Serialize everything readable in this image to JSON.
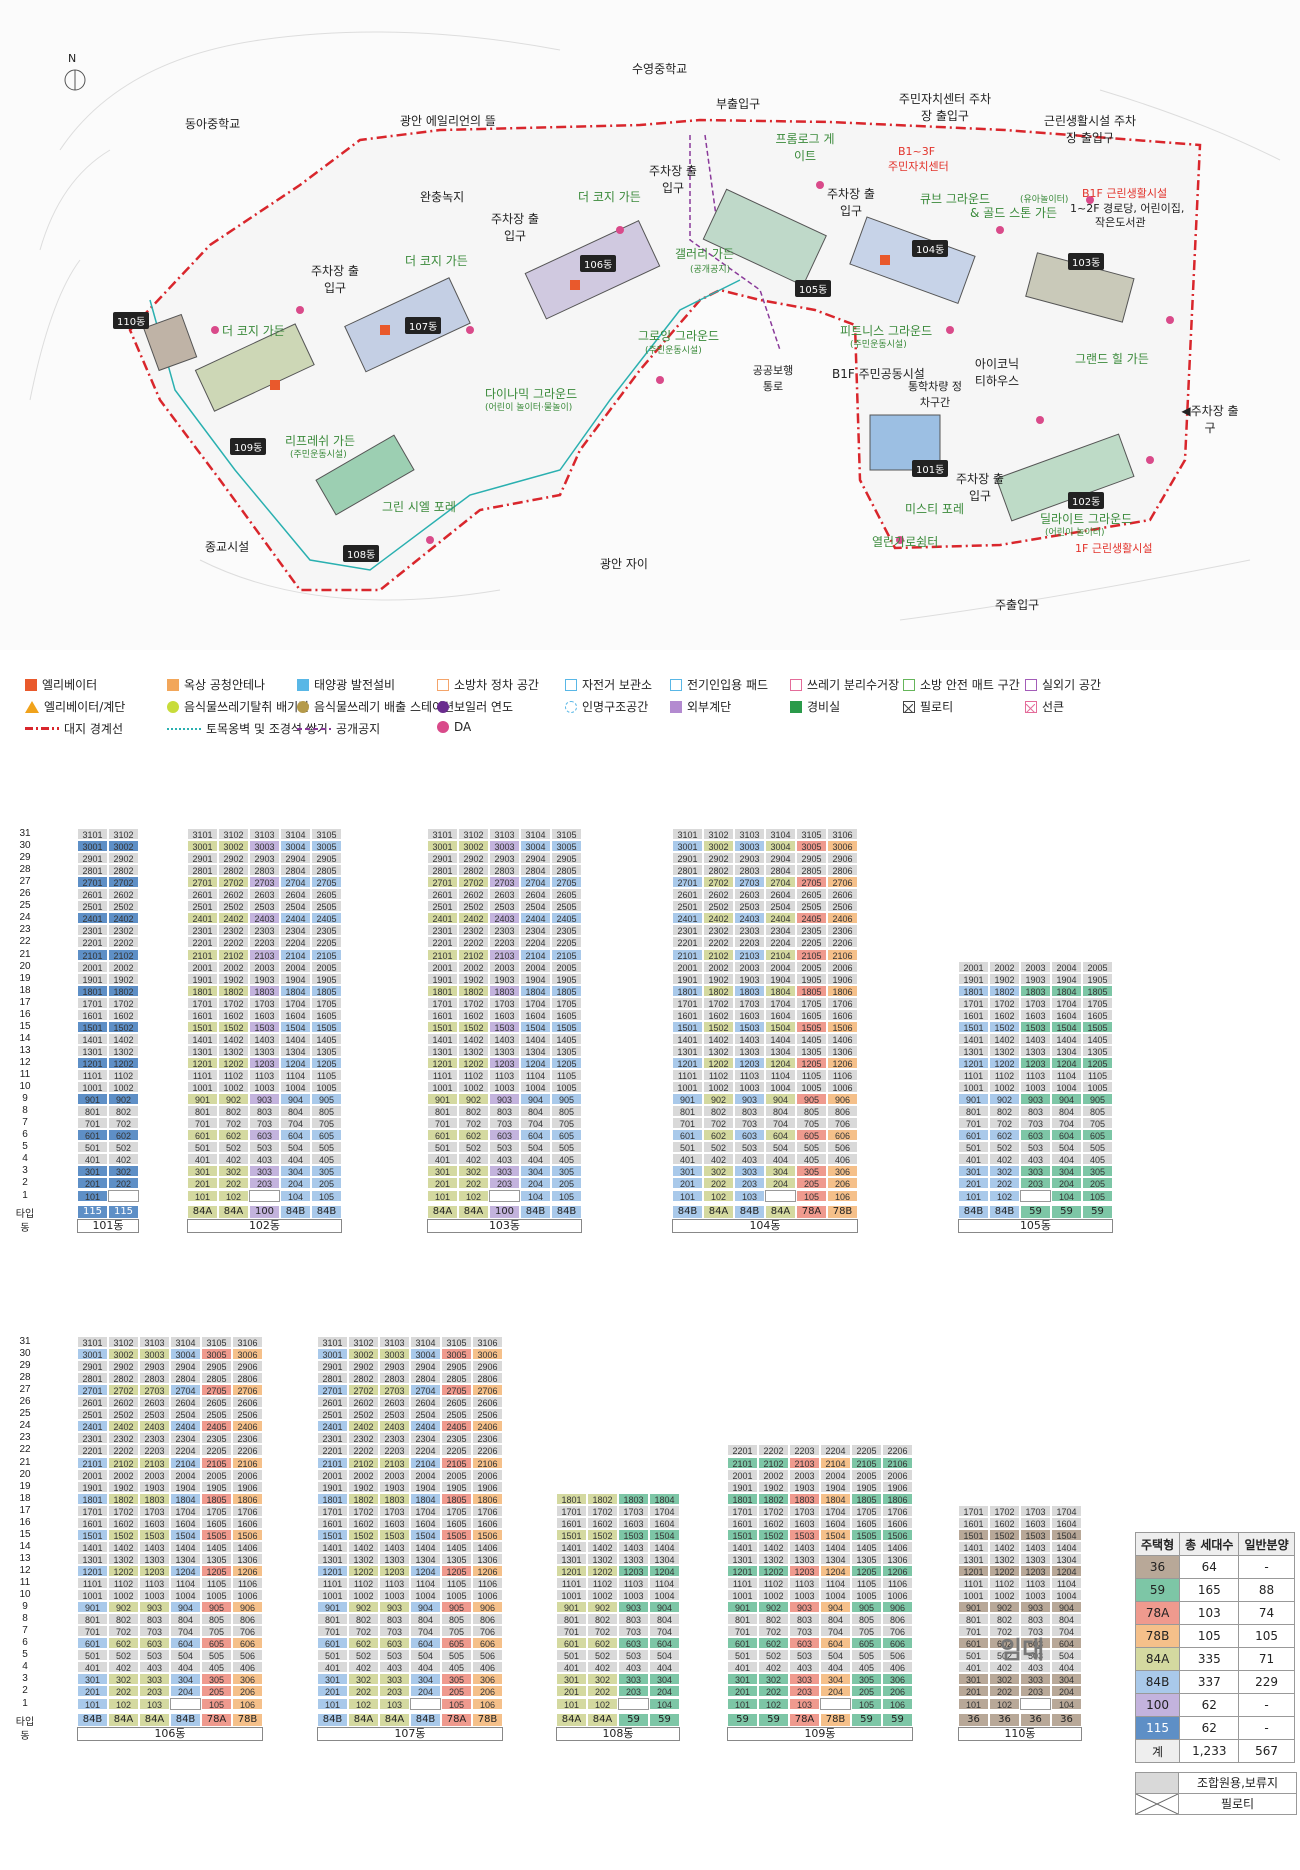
{
  "map": {
    "north": "N",
    "neighbors": [
      "수영중학교",
      "동아중학교",
      "광안 에일리언의 뜰",
      "완충녹지",
      "종교시설",
      "광안 자이"
    ],
    "entrances": [
      "부출입구",
      "주민자치센터 주차장 출입구",
      "근린생활시설 주차장 출입구",
      "주차장 출입구",
      "주차장 출입구",
      "주차장 출입구",
      "주차장 출입구",
      "주차장 출입구",
      "◀주차장 출구",
      "주출입구"
    ],
    "gardens": [
      "프롬로그 게이트",
      "더 코지 가든",
      "더 코지 가든",
      "더 코지 가든",
      "큐브 그라운드",
      "& 골드 스톤 가든",
      "갤러리 가든",
      "그로잉 그라운드",
      "다이나믹 그라운드",
      "리프레쉬 가든",
      "그린 시엘 포레",
      "피트니스 그라운드",
      "그랜드 힐 가든",
      "미스티 포레",
      "딜라이트 그라운드",
      "열린가로쉼터",
      "아이코닉 티하우스"
    ],
    "garden_subs": [
      "(공개공지)",
      "(주민운동시설)",
      "(어린이 놀이터·물놀이)",
      "(주민운동시설)",
      "(주민운동시설)",
      "(어린이 놀이터)",
      "(유아놀이터)"
    ],
    "red_labels": [
      "B1~3F",
      "주민자치센터",
      "B1F 근린생활시설",
      "1F 근린생활시설"
    ],
    "black_labels": [
      "1~2F 경로당, 어린이집,",
      "작은도서관",
      "B1F 주민공동시설",
      "통학차량 정차구간",
      "공공보행 통로"
    ],
    "buildings": [
      "110동",
      "109동",
      "108동",
      "107동",
      "106동",
      "105동",
      "104동",
      "103동",
      "102동",
      "101동"
    ]
  },
  "legend": [
    {
      "label": "엘리베이터",
      "color": "#e9592c",
      "kind": "fill"
    },
    {
      "label": "옥상 공청안테나",
      "color": "#f2a65a",
      "kind": "fill"
    },
    {
      "label": "태양광 발전설비",
      "color": "#59b7e6",
      "kind": "fill"
    },
    {
      "label": "소방차 정차 공간",
      "color": "#f4a46a",
      "kind": "outline"
    },
    {
      "label": "자전거 보관소",
      "color": "#59b7e6",
      "kind": "outline"
    },
    {
      "label": "전기인입용 패드",
      "color": "#59b7e6",
      "kind": "outline"
    },
    {
      "label": "쓰레기 분리수거장",
      "color": "#e46c9a",
      "kind": "outline"
    },
    {
      "label": "소방 안전 매트 구간",
      "color": "#65b55a",
      "kind": "outline"
    },
    {
      "label": "실외기 공간",
      "color": "#a35cb8",
      "kind": "outline"
    },
    {
      "label": "엘리베이터/계단",
      "color": "#f0a21b",
      "kind": "tri"
    },
    {
      "label": "음식물쓰레기탈취 배기관",
      "color": "#c8dc3a",
      "kind": "dot"
    },
    {
      "label": "음식물쓰레기 배출 스테이션",
      "color": "#b59a4a",
      "kind": "dot"
    },
    {
      "label": "보일러 연도",
      "color": "#6a2c8e",
      "kind": "dot"
    },
    {
      "label": "인명구조공간",
      "color": "#59b7e6",
      "kind": "dash"
    },
    {
      "label": "외부계단",
      "color": "#b38ad0",
      "kind": "fill"
    },
    {
      "label": "경비실",
      "color": "#2a9a4a",
      "kind": "fill"
    },
    {
      "label": "필로티",
      "color": "#444",
      "kind": "x"
    },
    {
      "label": "선큰",
      "color": "#e46c9a",
      "kind": "x"
    },
    {
      "label": "대지 경계선",
      "color": "#d9262c",
      "kind": "line"
    },
    {
      "label": "토목옹벽 및 조경석 쌓기",
      "color": "#2ab0b0",
      "kind": "wave"
    },
    {
      "label": "공개공지",
      "color": "#8a3a9a",
      "kind": "dashline"
    },
    {
      "label": "DA",
      "color": "#d94a8a",
      "kind": "dot"
    }
  ],
  "type_colors": {
    "36": "#b8a898",
    "59": "#7dc6a6",
    "78A": "#ef9a8e",
    "78B": "#f5c08a",
    "84A": "#d4d9a0",
    "84B": "#a9c9ea",
    "100": "#c3b3dd",
    "115": "#5e8fc6",
    "gray": "#d9d9d9",
    "none": "#ffffff"
  },
  "labels": {
    "type": "타입",
    "dong": "동",
    "imdae": "임대"
  },
  "floors": [
    "31",
    "30",
    "29",
    "28",
    "27",
    "26",
    "25",
    "24",
    "23",
    "22",
    "21",
    "20",
    "19",
    "18",
    "17",
    "16",
    "15",
    "14",
    "13",
    "12",
    "11",
    "10",
    "9",
    "8",
    "7",
    "6",
    "5",
    "4",
    "3",
    "2",
    "1"
  ],
  "buildings": [
    {
      "name": "101동",
      "units": 2,
      "top": 31,
      "types": [
        "115",
        "115"
      ]
    },
    {
      "name": "102동",
      "units": 5,
      "top": 31,
      "types": [
        "84A",
        "84A",
        "100",
        "84B",
        "84B"
      ]
    },
    {
      "name": "103동",
      "units": 5,
      "top": 31,
      "types": [
        "84A",
        "84A",
        "100",
        "84B",
        "84B"
      ]
    },
    {
      "name": "104동",
      "units": 6,
      "top": 31,
      "types": [
        "84B",
        "84A",
        "84B",
        "84A",
        "78A",
        "78B"
      ]
    },
    {
      "name": "105동",
      "units": 5,
      "top": 20,
      "types": [
        "84B",
        "84B",
        "59",
        "59",
        "59"
      ]
    },
    {
      "name": "106동",
      "units": 6,
      "top": 31,
      "types": [
        "84B",
        "84A",
        "84A",
        "84B",
        "78A",
        "78B"
      ]
    },
    {
      "name": "107동",
      "units": 6,
      "top": 31,
      "types": [
        "84B",
        "84A",
        "84A",
        "84B",
        "78A",
        "78B"
      ]
    },
    {
      "name": "108동",
      "units": 4,
      "top": 18,
      "types": [
        "84A",
        "84A",
        "59",
        "59"
      ]
    },
    {
      "name": "109동",
      "units": 6,
      "top": 22,
      "types": [
        "59",
        "59",
        "78A",
        "78B",
        "59",
        "59"
      ]
    },
    {
      "name": "110동",
      "units": 4,
      "top": 17,
      "types": [
        "36",
        "36",
        "36",
        "36"
      ]
    }
  ],
  "summary": {
    "headers": [
      "주택형",
      "총 세대수",
      "일반분양"
    ],
    "rows": [
      [
        "36",
        "64",
        "-"
      ],
      [
        "59",
        "165",
        "88"
      ],
      [
        "78A",
        "103",
        "74"
      ],
      [
        "78B",
        "105",
        "105"
      ],
      [
        "84A",
        "335",
        "71"
      ],
      [
        "84B",
        "337",
        "229"
      ],
      [
        "100",
        "62",
        "-"
      ],
      [
        "115",
        "62",
        "-"
      ],
      [
        "계",
        "1,233",
        "567"
      ]
    ],
    "note1": "조합원용,보류지",
    "note2": "필로티"
  }
}
